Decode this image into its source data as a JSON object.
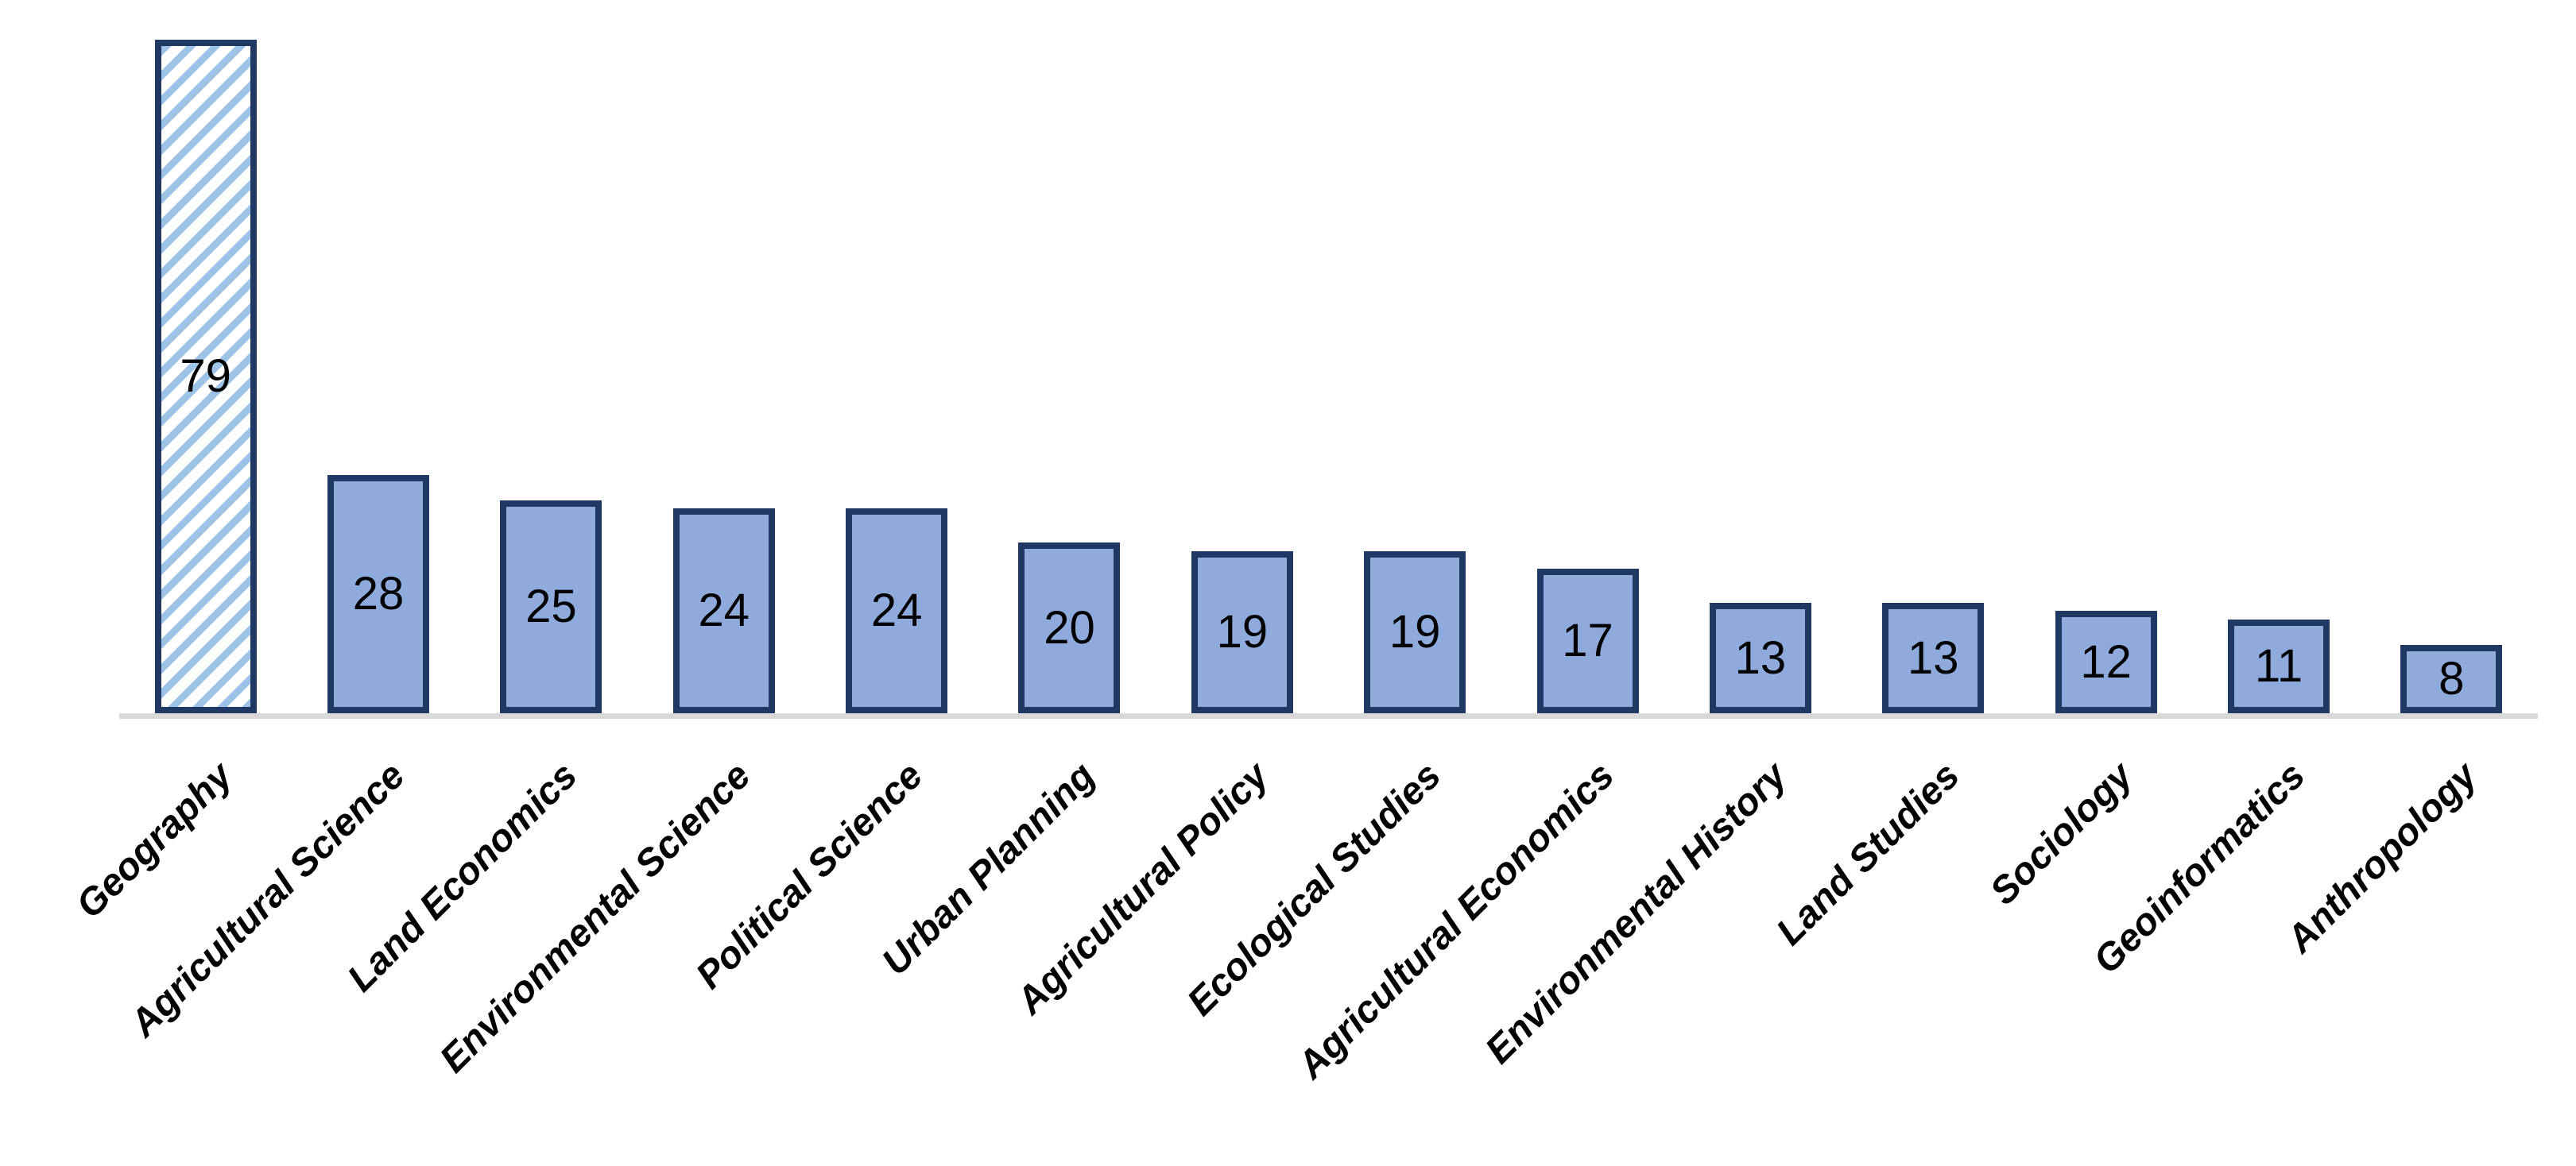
{
  "chart_data": {
    "type": "bar",
    "categories": [
      "Geography",
      "Agricultural Science",
      "Land Economics",
      "Environmental Science",
      "Political Science",
      "Urban Planning",
      "Agricultural Policy",
      "Ecological Studies",
      "Agricultural Economics",
      "Environmental History",
      "Land Studies",
      "Sociology",
      "Geoinformatics",
      "Anthropology"
    ],
    "values": [
      79,
      28,
      25,
      24,
      24,
      20,
      19,
      19,
      17,
      13,
      13,
      12,
      11,
      8
    ],
    "title": "",
    "xlabel": "",
    "ylabel": "",
    "ylim": [
      0,
      83
    ],
    "grid": false,
    "legend": false,
    "data_label_position": "inside-center",
    "category_label_rotation_deg": 45,
    "hatched_bar_index": 0
  },
  "style": {
    "bar_fill": "#8FAADC",
    "bar_border": "#1F3864",
    "hatch_stripe": "#9DC3E6",
    "hatch_background": "#FFFFFF",
    "axis_line_color": "#D9D9D9",
    "label_color": "#000000"
  }
}
